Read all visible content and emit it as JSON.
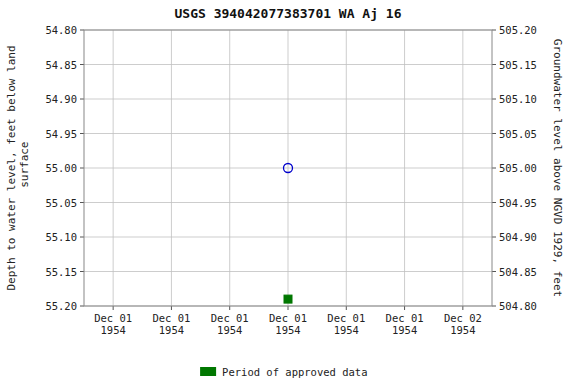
{
  "chart_data": {
    "type": "scatter",
    "title": "USGS 394042077383701 WA Aj  16",
    "y_label": "Depth to water level, feet below land\n surface",
    "y2_label": "Groundwater level above NGVD 1929, feet",
    "categories": [
      "Dec 01\n1954",
      "Dec 01\n1954",
      "Dec 01\n1954",
      "Dec 01\n1954",
      "Dec 01\n1954",
      "Dec 01\n1954",
      "Dec 02\n1954"
    ],
    "series": [
      {
        "color": "#0000cc",
        "marker": "open-circle",
        "values": [
          null,
          null,
          null,
          55.0,
          null,
          null,
          null
        ]
      },
      {
        "name": "Period of approved data",
        "color": "#007700",
        "marker": "square",
        "values": [
          null,
          null,
          null,
          55.19,
          null,
          null,
          null
        ]
      }
    ],
    "ylim": [
      55.2,
      54.8
    ],
    "yticks": [
      {
        "value": 54.8,
        "label": "54.80"
      },
      {
        "value": 54.85,
        "label": "54.85"
      },
      {
        "value": 54.9,
        "label": "54.90"
      },
      {
        "value": 54.95,
        "label": "54.95"
      },
      {
        "value": 55.0,
        "label": "55.00"
      },
      {
        "value": 55.05,
        "label": "55.05"
      },
      {
        "value": 55.1,
        "label": "55.10"
      },
      {
        "value": 55.15,
        "label": "55.15"
      },
      {
        "value": 55.2,
        "label": "55.20"
      }
    ],
    "y2lim": [
      504.8,
      505.2
    ],
    "y2ticks": [
      {
        "value": 505.2,
        "label": "505.20"
      },
      {
        "value": 505.15,
        "label": "505.15"
      },
      {
        "value": 505.1,
        "label": "505.10"
      },
      {
        "value": 505.05,
        "label": "505.05"
      },
      {
        "value": 505.0,
        "label": "505.00"
      },
      {
        "value": 504.95,
        "label": "504.95"
      },
      {
        "value": 504.9,
        "label": "504.90"
      },
      {
        "value": 504.85,
        "label": "504.85"
      },
      {
        "value": 504.8,
        "label": "504.80"
      }
    ],
    "grid": true,
    "legend": "bottom"
  }
}
